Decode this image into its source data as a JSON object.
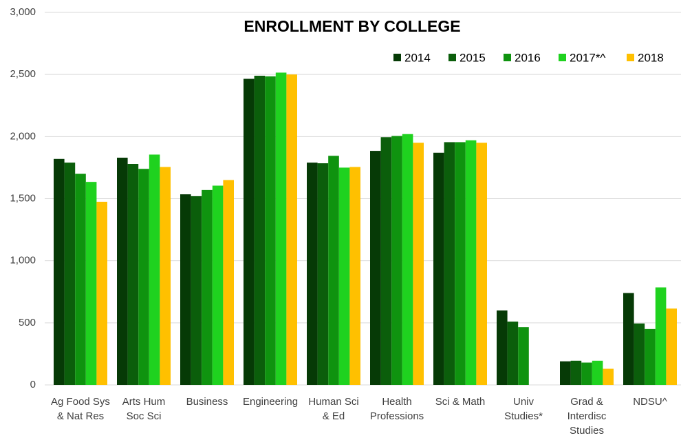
{
  "chart_data": {
    "type": "bar",
    "title": "ENROLLMENT BY COLLEGE",
    "categories": [
      "Ag Food Sys\n& Nat Res",
      "Arts Hum\nSoc Sci",
      "Business",
      "Engineering",
      "Human Sci\n& Ed",
      "Health\nProfessions",
      "Sci & Math",
      "Univ\nStudies*",
      "Grad &\nInterdisc\nStudies",
      "NDSU^"
    ],
    "series": [
      {
        "name": "2014",
        "color": "#063a06",
        "values": [
          1820,
          1830,
          1535,
          2465,
          1790,
          1885,
          1870,
          600,
          190,
          740
        ]
      },
      {
        "name": "2015",
        "color": "#0b5e0b",
        "values": [
          1790,
          1780,
          1520,
          2490,
          1785,
          1995,
          1955,
          510,
          195,
          495
        ]
      },
      {
        "name": "2016",
        "color": "#0f930f",
        "values": [
          1700,
          1740,
          1570,
          2485,
          1845,
          2005,
          1955,
          465,
          180,
          450
        ]
      },
      {
        "name": "2017*^",
        "color": "#1fd21f",
        "values": [
          1635,
          1855,
          1605,
          2515,
          1750,
          2020,
          1970,
          null,
          195,
          785
        ]
      },
      {
        "name": "2018",
        "color": "#ffc000",
        "values": [
          1475,
          1755,
          1650,
          2500,
          1755,
          1950,
          1950,
          null,
          130,
          615
        ]
      }
    ],
    "ylim": [
      0,
      3000
    ],
    "yticks": [
      0,
      500,
      {
        "value": 1000,
        "label": "1,000"
      },
      {
        "value": 1500,
        "label": "1,500"
      },
      {
        "value": 2000,
        "label": "2,000"
      },
      {
        "value": 2500,
        "label": "2,500"
      },
      {
        "value": 3000,
        "label": "3,000"
      }
    ],
    "grid": true
  }
}
